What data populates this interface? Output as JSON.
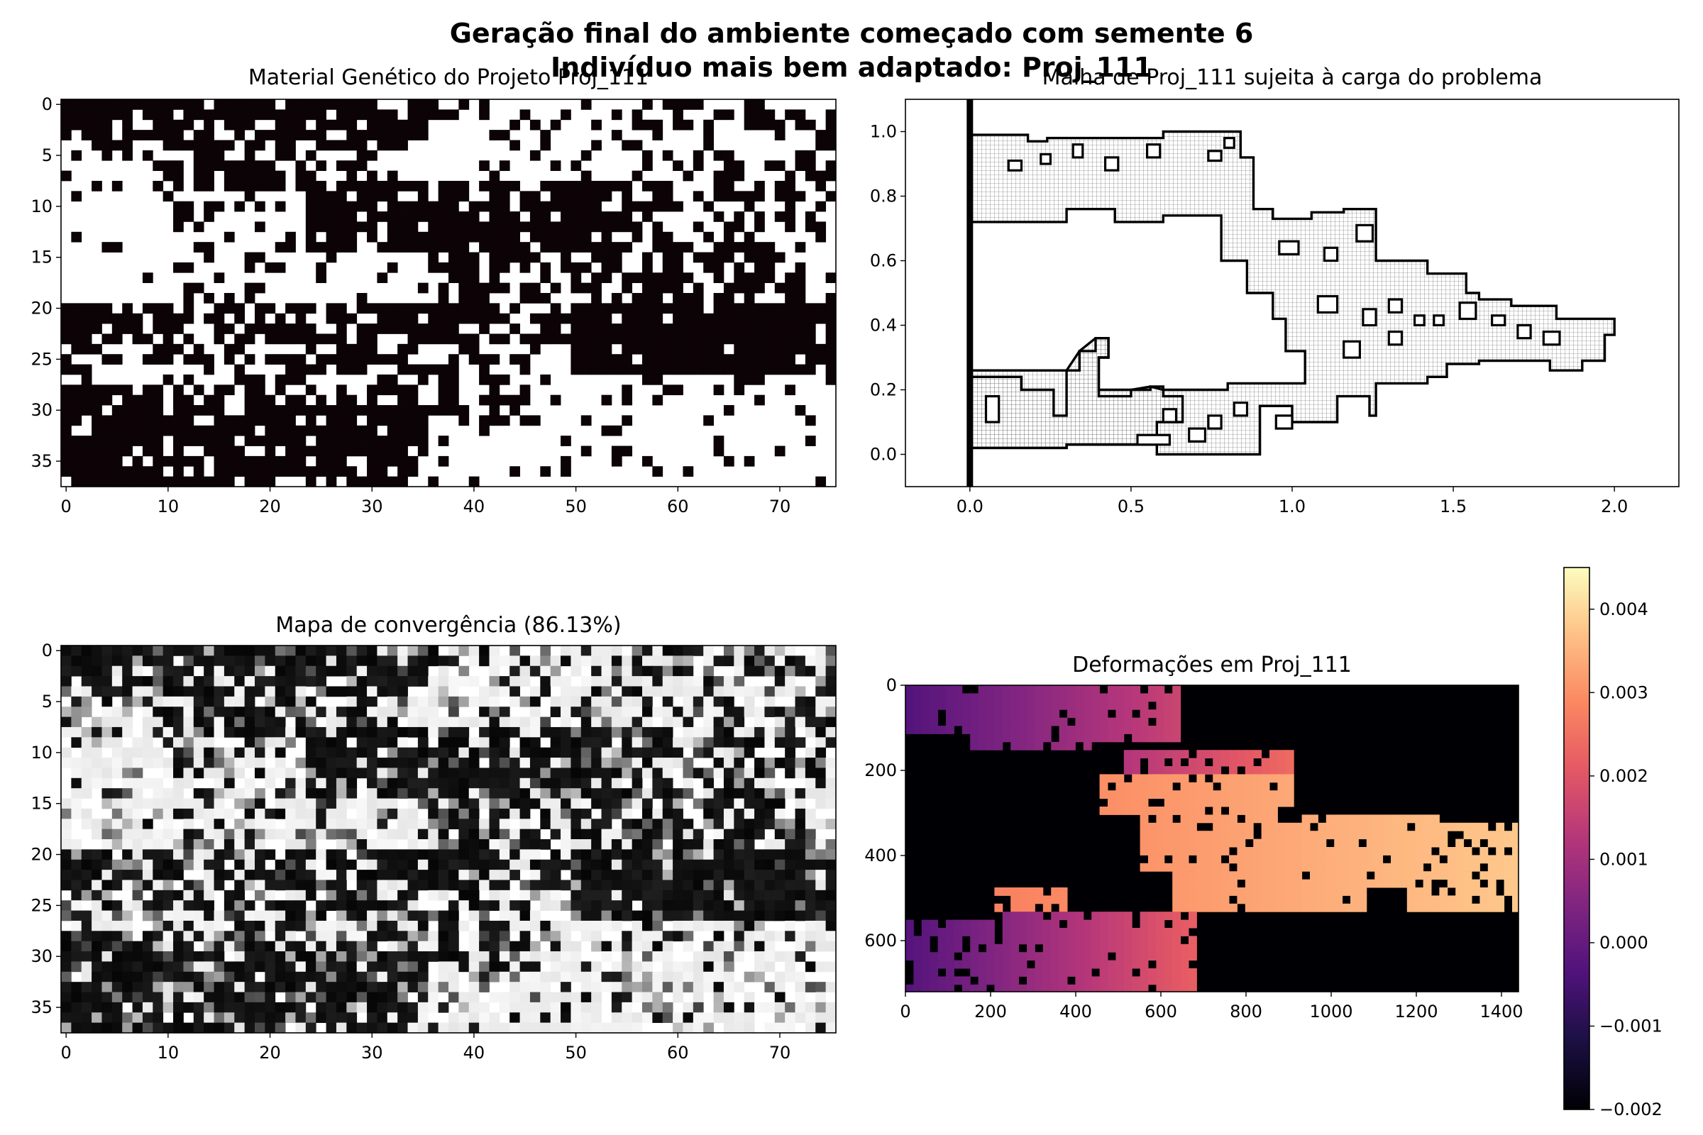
{
  "suptitle": {
    "line1": "Geração final do ambiente começado com semente 6",
    "line2": "Indivíduo mais bem adaptado: Proj_111"
  },
  "colors": {
    "binary_dark": "#0c0306",
    "binary_light": "#ffffff",
    "mesh": "#000000",
    "colormap": "magma"
  },
  "chart_data": [
    {
      "type": "heatmap",
      "title": "Material Genético do Projeto Proj_111",
      "colormap": "binary",
      "x_ticks": [
        0,
        10,
        20,
        30,
        40,
        50,
        60,
        70
      ],
      "y_ticks": [
        0,
        5,
        10,
        15,
        20,
        25,
        30,
        35
      ],
      "grid_shape": [
        38,
        76
      ]
    },
    {
      "type": "scatter",
      "title": "Malha de Proj_111 sujeita à carga do problema",
      "x_ticks": [
        "0.0",
        "0.5",
        "1.0",
        "1.5",
        "2.0"
      ],
      "y_ticks": [
        "0.0",
        "0.2",
        "0.4",
        "0.6",
        "0.8",
        "1.0"
      ],
      "xlim": [
        -0.2,
        2.2
      ],
      "ylim": [
        -0.1,
        1.1
      ],
      "support_line_x": 0.0
    },
    {
      "type": "heatmap",
      "title": "Mapa de convergência (86.13%)",
      "colormap": "greys",
      "x_ticks": [
        0,
        10,
        20,
        30,
        40,
        50,
        60,
        70
      ],
      "y_ticks": [
        0,
        5,
        10,
        15,
        20,
        25,
        30,
        35
      ],
      "grid_shape": [
        38,
        76
      ]
    },
    {
      "type": "heatmap",
      "title": "Deformações em Proj_111",
      "colormap": "magma",
      "x_ticks": [
        0,
        200,
        400,
        600,
        800,
        1000,
        1200,
        1400
      ],
      "y_ticks": [
        0,
        200,
        400,
        600
      ],
      "xlim": [
        0,
        1440
      ],
      "ylim": [
        720,
        0
      ],
      "colorbar": {
        "range": [
          -0.002,
          0.0045
        ],
        "ticks": [
          "−0.002",
          "−0.001",
          "0.000",
          "0.001",
          "0.002",
          "0.003",
          "0.004"
        ]
      }
    }
  ]
}
